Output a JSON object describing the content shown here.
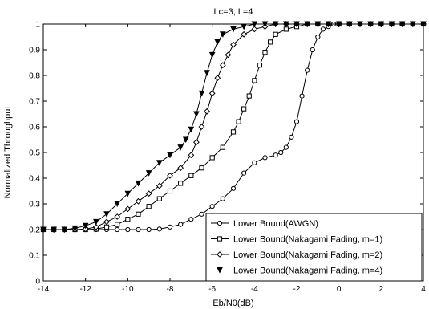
{
  "chart_data": {
    "type": "line",
    "title": "Lc=3, L=4",
    "xlabel": "Eb/N0(dB)",
    "ylabel": "Normalized Throughput",
    "xlim": [
      -14,
      4
    ],
    "ylim": [
      0,
      1
    ],
    "xticks": [
      -14,
      -12,
      -10,
      -8,
      -6,
      -4,
      -2,
      0,
      2,
      4
    ],
    "yticks": [
      0,
      0.1,
      0.2,
      0.3,
      0.4,
      0.5,
      0.6,
      0.7,
      0.8,
      0.9,
      1
    ],
    "grid": false,
    "legend_position": "bottom-right",
    "series": [
      {
        "name": "Lower Bound(AWGN)",
        "marker": "circle",
        "x": [
          -14,
          -13.5,
          -13,
          -12.5,
          -12,
          -11.5,
          -11,
          -10.5,
          -10,
          -9.5,
          -9,
          -8.5,
          -8,
          -7.5,
          -7,
          -6.5,
          -6,
          -5.5,
          -5,
          -4.5,
          -4,
          -3.5,
          -3,
          -2.75,
          -2.5,
          -2.25,
          -2,
          -1.75,
          -1.5,
          -1.25,
          -1,
          -0.75,
          -0.5,
          -0.25,
          0,
          0.5,
          1,
          1.5,
          2,
          2.5,
          3,
          3.5,
          4
        ],
        "y": [
          0.2,
          0.2,
          0.2,
          0.2,
          0.2,
          0.2,
          0.2,
          0.2,
          0.2,
          0.2,
          0.2,
          0.202,
          0.21,
          0.22,
          0.24,
          0.26,
          0.29,
          0.32,
          0.36,
          0.42,
          0.46,
          0.48,
          0.49,
          0.5,
          0.52,
          0.56,
          0.62,
          0.72,
          0.82,
          0.9,
          0.95,
          0.98,
          0.99,
          1,
          1,
          1,
          1,
          1,
          1,
          1,
          1,
          1,
          1
        ]
      },
      {
        "name": "Lower Bound(Nakagami Fading, m=1)",
        "marker": "square",
        "x": [
          -14,
          -13.5,
          -13,
          -12.5,
          -12,
          -11.5,
          -11,
          -10.5,
          -10,
          -9.5,
          -9,
          -8.5,
          -8,
          -7.5,
          -7,
          -6.5,
          -6,
          -5.5,
          -5,
          -4.75,
          -4.5,
          -4.25,
          -4,
          -3.75,
          -3.5,
          -3.25,
          -3,
          -2.5,
          -2,
          -1.5,
          -1,
          -0.5,
          0,
          0.5,
          1,
          1.5,
          2,
          2.5,
          3,
          3.5,
          4
        ],
        "y": [
          0.2,
          0.2,
          0.2,
          0.2,
          0.2,
          0.202,
          0.21,
          0.22,
          0.24,
          0.26,
          0.29,
          0.32,
          0.35,
          0.38,
          0.41,
          0.44,
          0.48,
          0.52,
          0.58,
          0.62,
          0.67,
          0.72,
          0.78,
          0.84,
          0.89,
          0.93,
          0.96,
          0.98,
          0.99,
          1,
          1,
          1,
          1,
          1,
          1,
          1,
          1,
          1,
          1,
          1,
          1
        ]
      },
      {
        "name": "Lower Bound(Nakagami Fading, m=2)",
        "marker": "diamond",
        "x": [
          -14,
          -13.5,
          -13,
          -12.5,
          -12,
          -11.5,
          -11,
          -10.5,
          -10,
          -9.5,
          -9,
          -8.5,
          -8,
          -7.5,
          -7,
          -6.75,
          -6.5,
          -6.25,
          -6,
          -5.75,
          -5.5,
          -5.25,
          -5,
          -4.5,
          -4,
          -3.5,
          -3,
          -2.5,
          -2,
          -1.5,
          -1,
          -0.5,
          0,
          0.5,
          1,
          1.5,
          2,
          2.5,
          3,
          3.5,
          4
        ],
        "y": [
          0.2,
          0.2,
          0.2,
          0.2,
          0.202,
          0.21,
          0.23,
          0.25,
          0.28,
          0.31,
          0.34,
          0.37,
          0.41,
          0.44,
          0.49,
          0.54,
          0.6,
          0.66,
          0.73,
          0.79,
          0.84,
          0.88,
          0.92,
          0.96,
          0.98,
          0.99,
          1,
          1,
          1,
          1,
          1,
          1,
          1,
          1,
          1,
          1,
          1,
          1,
          1,
          1,
          1
        ]
      },
      {
        "name": "Lower Bound(Nakagami Fading, m=4)",
        "marker": "triangle-down",
        "x": [
          -14,
          -13.5,
          -13,
          -12.5,
          -12,
          -11.5,
          -11,
          -10.5,
          -10,
          -9.5,
          -9,
          -8.5,
          -8,
          -7.5,
          -7.25,
          -7,
          -6.75,
          -6.5,
          -6.25,
          -6,
          -5.75,
          -5.5,
          -5,
          -4.5,
          -4,
          -3.5,
          -3,
          -2.5,
          -2,
          -1.5,
          -1,
          -0.5,
          0,
          0.5,
          1,
          1.5,
          2,
          2.5,
          3,
          3.5,
          4
        ],
        "y": [
          0.2,
          0.2,
          0.2,
          0.205,
          0.215,
          0.23,
          0.26,
          0.3,
          0.34,
          0.38,
          0.42,
          0.46,
          0.49,
          0.52,
          0.55,
          0.59,
          0.65,
          0.73,
          0.81,
          0.88,
          0.93,
          0.96,
          0.98,
          0.99,
          1,
          1,
          1,
          1,
          1,
          1,
          1,
          1,
          1,
          1,
          1,
          1,
          1,
          1,
          1,
          1,
          1
        ]
      }
    ]
  }
}
